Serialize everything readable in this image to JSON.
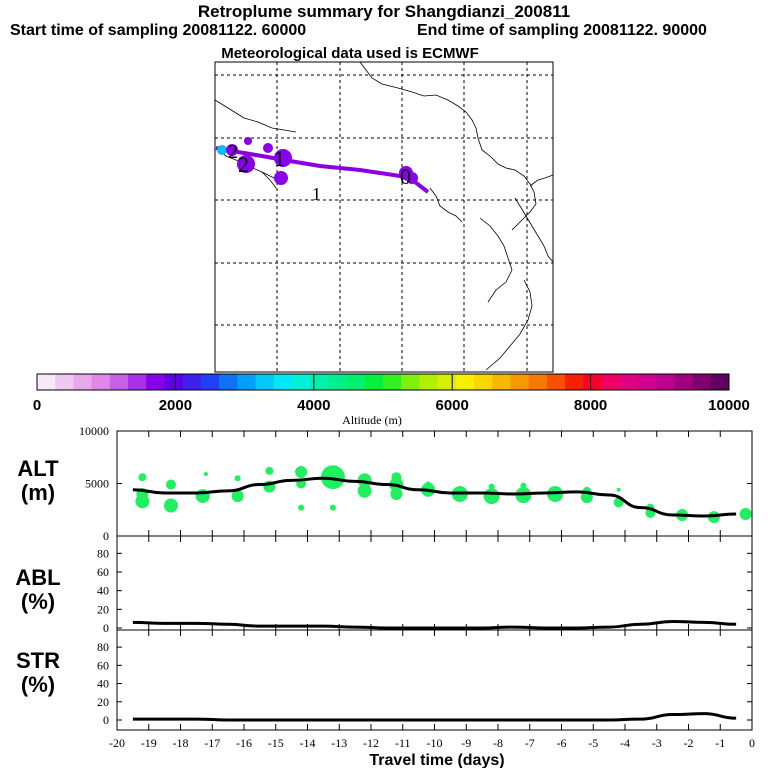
{
  "header": {
    "title": "Retroplume summary for Shangdianzi_200811",
    "start": "Start time of sampling 20081122. 60000",
    "end": "End time of sampling 20081122. 90000",
    "met": "Meteorological data used is ECMWF"
  },
  "map": {
    "markers": [
      {
        "label": "0",
        "note": "release"
      },
      {
        "label": "1"
      },
      {
        "label": "1"
      },
      {
        "label": "2"
      },
      {
        "label": "2"
      }
    ]
  },
  "colorbar": {
    "title": "Altitude (m)",
    "ticks": [
      "0",
      "2000",
      "4000",
      "6000",
      "8000",
      "10000"
    ],
    "colors": [
      "#f8e8f8",
      "#f0c8f0",
      "#e8a8ec",
      "#e088e8",
      "#c860e8",
      "#a830e8",
      "#8800e8",
      "#6000e8",
      "#4020f0",
      "#2040f8",
      "#1070f8",
      "#00a0f8",
      "#00c8f8",
      "#00e8f8",
      "#00f0d8",
      "#00f0b0",
      "#00f090",
      "#00f070",
      "#00f040",
      "#30f020",
      "#80f010",
      "#b0f000",
      "#d8f000",
      "#f8f000",
      "#f8d800",
      "#f8b800",
      "#f89800",
      "#f87800",
      "#f85000",
      "#f82000",
      "#f80030",
      "#f00060",
      "#e00080",
      "#d00090",
      "#c00090",
      "#a00080",
      "#800070",
      "#600060"
    ]
  },
  "panel_labels": {
    "alt": [
      "ALT",
      "(m)"
    ],
    "abl": [
      "ABL",
      "(%)"
    ],
    "str": [
      "STR",
      "(%)"
    ]
  },
  "chart_data": [
    {
      "type": "line",
      "name": "ALT",
      "ylabel": "ALT (m)",
      "ylim": [
        0,
        10000
      ],
      "yticks": [
        "10000",
        "5000",
        "0"
      ],
      "x": [
        -19.5,
        -18.5,
        -17.5,
        -16.5,
        -15.5,
        -14.5,
        -13.5,
        -12.5,
        -11.5,
        -10.5,
        -9.5,
        -8.5,
        -7.5,
        -6.5,
        -5.5,
        -4.5,
        -3.5,
        -2.5,
        -1.5,
        -0.5
      ],
      "values": [
        4400,
        4100,
        4100,
        4300,
        4900,
        5300,
        5500,
        5200,
        4900,
        4400,
        4100,
        4100,
        4000,
        4100,
        4200,
        3900,
        2700,
        2000,
        1900,
        2100
      ],
      "points": [
        [
          -19.2,
          5600,
          4
        ],
        [
          -19.2,
          4000,
          6
        ],
        [
          -19.2,
          3300,
          7
        ],
        [
          -18.3,
          4900,
          5
        ],
        [
          -18.3,
          2900,
          7
        ],
        [
          -17.3,
          3800,
          7
        ],
        [
          -17.2,
          5900,
          2
        ],
        [
          -16.2,
          3800,
          6
        ],
        [
          -16.2,
          5500,
          3
        ],
        [
          -15.2,
          6200,
          4
        ],
        [
          -15.2,
          4700,
          6
        ],
        [
          -14.2,
          6100,
          6
        ],
        [
          -14.2,
          5000,
          5
        ],
        [
          -14.2,
          2700,
          3
        ],
        [
          -13.2,
          5600,
          12
        ],
        [
          -13.2,
          2700,
          3
        ],
        [
          -12.2,
          5300,
          7
        ],
        [
          -12.2,
          4300,
          7
        ],
        [
          -11.2,
          5600,
          5
        ],
        [
          -11.2,
          4900,
          7
        ],
        [
          -11.2,
          4000,
          6
        ],
        [
          -10.2,
          4400,
          7
        ],
        [
          -10.2,
          4900,
          3
        ],
        [
          -9.2,
          4000,
          8
        ],
        [
          -8.2,
          4700,
          3
        ],
        [
          -8.2,
          3800,
          8
        ],
        [
          -7.2,
          3900,
          8
        ],
        [
          -7.2,
          4800,
          3
        ],
        [
          -6.2,
          4000,
          8
        ],
        [
          -5.2,
          4300,
          4
        ],
        [
          -5.2,
          3700,
          6
        ],
        [
          -4.2,
          4400,
          2
        ],
        [
          -4.2,
          3200,
          5
        ],
        [
          -3.2,
          2700,
          4
        ],
        [
          -3.2,
          2200,
          5
        ],
        [
          -2.2,
          2000,
          6
        ],
        [
          -1.2,
          1800,
          6
        ],
        [
          -0.2,
          2100,
          6
        ]
      ]
    },
    {
      "type": "line",
      "name": "ABL",
      "ylabel": "ABL (%)",
      "ylim": [
        0,
        90
      ],
      "yticks": [
        "80",
        "60",
        "40",
        "20",
        "0"
      ],
      "x": [
        -19.5,
        -18.5,
        -17.5,
        -16.5,
        -15.5,
        -14.5,
        -13.5,
        -12.5,
        -11.5,
        -10.5,
        -9.5,
        -8.5,
        -7.5,
        -6.5,
        -5.5,
        -4.5,
        -3.5,
        -2.5,
        -1.5,
        -0.5
      ],
      "values": [
        6,
        5,
        5,
        4,
        2,
        2,
        2,
        1,
        0,
        0,
        0,
        0,
        1,
        0,
        0,
        1,
        4,
        7,
        6,
        4
      ]
    },
    {
      "type": "line",
      "name": "STR",
      "ylabel": "STR (%)",
      "ylim": [
        0,
        90
      ],
      "yticks": [
        "80",
        "60",
        "40",
        "20",
        "0"
      ],
      "x": [
        -19.5,
        -18.5,
        -17.5,
        -16.5,
        -15.5,
        -14.5,
        -13.5,
        -12.5,
        -11.5,
        -10.5,
        -9.5,
        -8.5,
        -7.5,
        -6.5,
        -5.5,
        -4.5,
        -3.5,
        -2.5,
        -1.5,
        -0.5
      ],
      "values": [
        1,
        1,
        1,
        0,
        0,
        0,
        0,
        0,
        0,
        0,
        0,
        0,
        0,
        0,
        0,
        0,
        1,
        6,
        7,
        2
      ]
    }
  ],
  "xaxis": {
    "label": "Travel time (days)",
    "range": [
      -20,
      0
    ],
    "ticks": [
      "-20",
      "-19",
      "-18",
      "-17",
      "-16",
      "-15",
      "-14",
      "-13",
      "-12",
      "-11",
      "-10",
      "-9",
      "-8",
      "-7",
      "-6",
      "-5",
      "-4",
      "-3",
      "-2",
      "-1",
      "0"
    ]
  }
}
